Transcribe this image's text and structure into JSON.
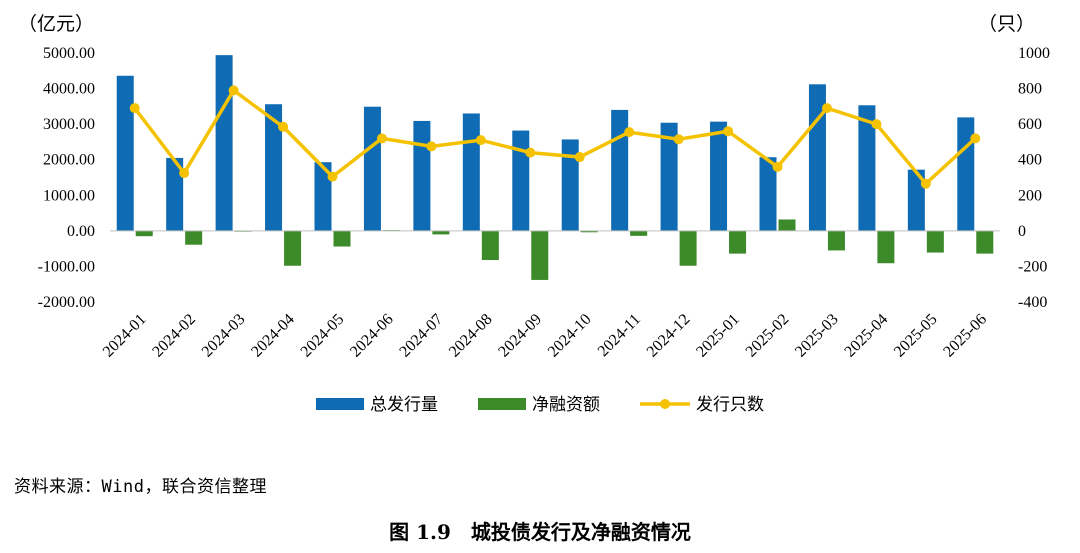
{
  "chart_data": {
    "type": "bar",
    "categories": [
      "2024-01",
      "2024-02",
      "2024-03",
      "2024-04",
      "2024-05",
      "2024-06",
      "2024-07",
      "2024-08",
      "2024-09",
      "2024-10",
      "2024-11",
      "2024-12",
      "2025-01",
      "2025-02",
      "2025-03",
      "2025-04",
      "2025-05",
      "2025-06"
    ],
    "series": [
      {
        "name": "总发行量",
        "type": "bar",
        "axis": "left",
        "color": "#0f6bb3",
        "values": [
          4360,
          2050,
          4940,
          3560,
          1930,
          3490,
          3090,
          3300,
          2820,
          2570,
          3400,
          3040,
          3070,
          2070,
          4120,
          3530,
          1720,
          3190
        ]
      },
      {
        "name": "净融资额",
        "type": "bar",
        "axis": "left",
        "color": "#3c8a2a",
        "values": [
          -150,
          -390,
          0,
          -980,
          -440,
          20,
          -100,
          -820,
          -1380,
          -40,
          -140,
          -980,
          -640,
          320,
          -550,
          -910,
          -610,
          -640
        ]
      },
      {
        "name": "发行只数",
        "type": "line",
        "axis": "right",
        "color": "#f5c200",
        "values": [
          690,
          325,
          790,
          585,
          305,
          520,
          475,
          510,
          440,
          415,
          555,
          515,
          560,
          360,
          690,
          600,
          265,
          520
        ]
      }
    ],
    "ylabel_left": "（亿元）",
    "ylabel_right": "（只）",
    "ylim_left": [
      -2000,
      5000
    ],
    "ylim_right": [
      -400,
      1000
    ],
    "yticks_left": [
      "5000.00",
      "4000.00",
      "3000.00",
      "2000.00",
      "1000.00",
      "0.00",
      "-1000.00",
      "-2000.00"
    ],
    "yticks_right": [
      "1000",
      "800",
      "600",
      "400",
      "200",
      "0",
      "-200",
      "-400"
    ],
    "grid": false,
    "legend_position": "bottom"
  },
  "source_text": "资料来源：Wind，联合资信整理",
  "caption": {
    "number": "图 1.9",
    "title": "城投债发行及净融资情况"
  }
}
